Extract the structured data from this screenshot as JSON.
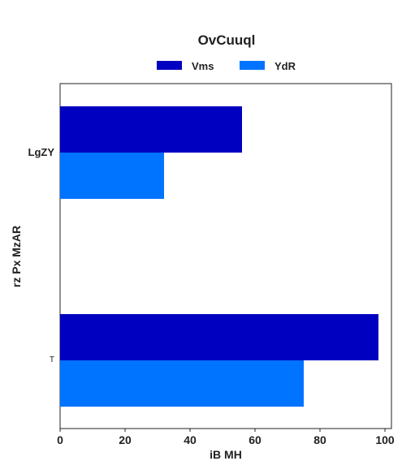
{
  "chart_data": {
    "type": "bar",
    "orientation": "horizontal",
    "title": "OvCuuql",
    "xlabel": "iB MH",
    "ylabel": "rz Px MzAR",
    "categories": [
      "LgZY",
      "T"
    ],
    "series": [
      {
        "name": "Vms",
        "color": "#0000c0",
        "values": [
          56,
          98
        ]
      },
      {
        "name": "YdR",
        "color": "#0073ff",
        "values": [
          32,
          75
        ]
      }
    ],
    "xlim": [
      0,
      100
    ],
    "xticks": [
      0,
      20,
      40,
      60,
      80,
      100
    ],
    "grid": false,
    "legend_position": "top-center"
  }
}
